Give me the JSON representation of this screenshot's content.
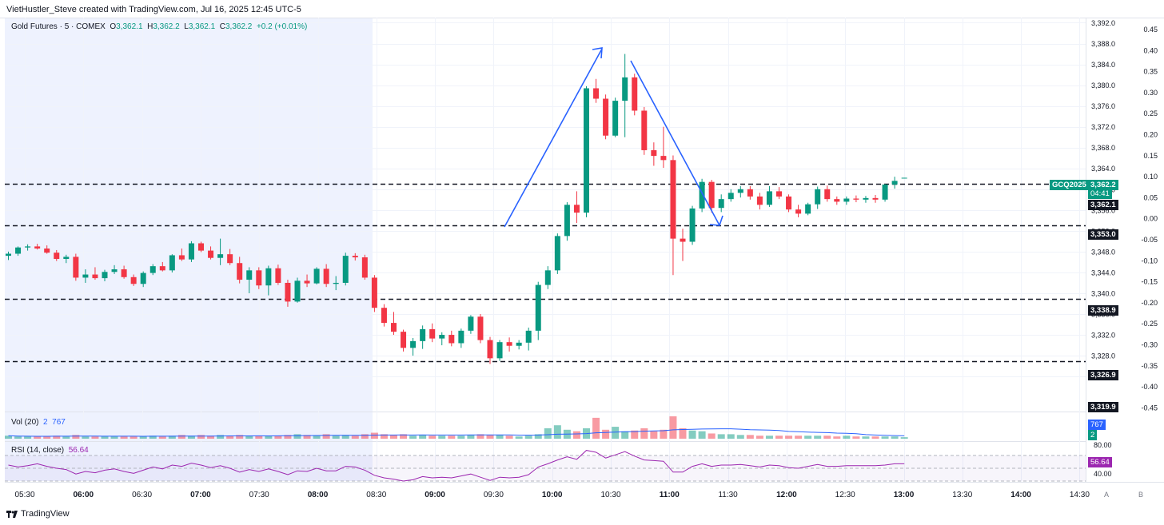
{
  "header": {
    "creator_text": "VietHustler_Steve created with TradingView.com, Jul 16, 2025 12:45 UTC-5"
  },
  "legend": {
    "symbol": "Gold Futures · 5 · COMEX",
    "o_label": "O",
    "o_value": "3,362.1",
    "h_label": "H",
    "h_value": "3,362.2",
    "l_label": "L",
    "l_value": "3,362.1",
    "c_label": "C",
    "c_value": "3,362.2",
    "change": "+0.2 (+0.01%)"
  },
  "volume_legend": {
    "label": "Vol (20)",
    "value1": "2",
    "value2": "767"
  },
  "rsi_legend": {
    "label": "RSI (14, close)",
    "value": "56.64"
  },
  "tags": {
    "symbol": "GCQ2025",
    "last_price": "3,362.2",
    "countdown": "04:41",
    "open_price": "3,362.1",
    "level_1": "3,353.0",
    "level_2": "3,338.9",
    "level_3": "3,326.9",
    "level_4": "3,319.9",
    "vol_big": "767",
    "vol_small": "2",
    "rsi_value": "56.64"
  },
  "footer": {
    "brand": "TradingView",
    "btn_a": "A",
    "btn_b": "B"
  },
  "colors": {
    "up": "#089981",
    "down": "#f23645",
    "rsi": "#9c27b0",
    "annotation": "#2962ff",
    "session_shade": "#eef2fe"
  },
  "chart_data": {
    "type": "candlestick",
    "symbol": "Gold Futures · 5 · COMEX",
    "y_axis_price": {
      "range": [
        3320,
        3394
      ],
      "ticks": [
        3392,
        3388,
        3384,
        3380,
        3376,
        3372,
        3368,
        3364,
        3360,
        3356,
        3352,
        3348,
        3344,
        3340,
        3336,
        3332,
        3328,
        3324
      ]
    },
    "y_axis_percent": {
      "ticks": [
        "0.45",
        "0.40",
        "0.35",
        "0.30",
        "0.25",
        "0.20",
        "0.15",
        "0.10",
        "0.05",
        "0.00",
        "-0.05",
        "-0.10",
        "-0.15",
        "-0.20",
        "-0.25",
        "-0.30",
        "-0.35",
        "-0.40",
        "-0.45"
      ]
    },
    "x_ticks": [
      "05:30",
      "06:00",
      "06:30",
      "07:00",
      "07:30",
      "08:00",
      "08:30",
      "09:00",
      "09:30",
      "10:00",
      "10:30",
      "11:00",
      "11:30",
      "12:00",
      "12:30",
      "13:00",
      "13:30",
      "14:00",
      "14:30"
    ],
    "horizontal_levels": [
      3361,
      3353.0,
      3338.9,
      3326.9
    ],
    "rsi_levels": {
      "upper": 70,
      "middle": 50,
      "lower": 30,
      "labeled_ticks": [
        "80.00",
        "40.00"
      ],
      "last": 56.64
    },
    "candles": [
      [
        3347.2,
        3348.0,
        3346.4,
        3347.6
      ],
      [
        3347.6,
        3349.0,
        3347.2,
        3348.8
      ],
      [
        3348.8,
        3349.4,
        3348.2,
        3349.0
      ],
      [
        3349.0,
        3349.5,
        3348.4,
        3348.6
      ],
      [
        3348.6,
        3349.2,
        3347.6,
        3347.8
      ],
      [
        3347.8,
        3348.3,
        3346.2,
        3346.6
      ],
      [
        3346.6,
        3347.4,
        3345.8,
        3347.0
      ],
      [
        3347.0,
        3347.6,
        3342.4,
        3343.0
      ],
      [
        3343.0,
        3344.6,
        3342.0,
        3343.6
      ],
      [
        3343.6,
        3345.0,
        3342.6,
        3342.9
      ],
      [
        3342.9,
        3344.5,
        3342.3,
        3344.1
      ],
      [
        3344.1,
        3345.4,
        3343.7,
        3344.6
      ],
      [
        3344.6,
        3345.3,
        3342.8,
        3343.1
      ],
      [
        3343.1,
        3343.6,
        3341.4,
        3341.8
      ],
      [
        3341.8,
        3344.2,
        3341.2,
        3343.9
      ],
      [
        3343.9,
        3345.6,
        3343.5,
        3345.2
      ],
      [
        3345.2,
        3346.0,
        3344.2,
        3344.4
      ],
      [
        3344.4,
        3347.5,
        3344.0,
        3347.3
      ],
      [
        3347.3,
        3348.6,
        3346.2,
        3346.5
      ],
      [
        3346.5,
        3350.0,
        3346.0,
        3349.6
      ],
      [
        3349.6,
        3349.9,
        3347.9,
        3348.2
      ],
      [
        3348.2,
        3349.0,
        3346.5,
        3346.8
      ],
      [
        3346.8,
        3350.5,
        3345.4,
        3347.5
      ],
      [
        3347.5,
        3348.5,
        3345.4,
        3345.8
      ],
      [
        3345.8,
        3347.0,
        3341.9,
        3342.6
      ],
      [
        3342.6,
        3345.0,
        3340.0,
        3344.4
      ],
      [
        3344.4,
        3345.0,
        3340.8,
        3341.5
      ],
      [
        3341.5,
        3345.3,
        3339.6,
        3344.8
      ],
      [
        3344.8,
        3345.5,
        3341.6,
        3342.0
      ],
      [
        3342.0,
        3342.6,
        3337.4,
        3338.4
      ],
      [
        3338.4,
        3343.0,
        3338.2,
        3342.4
      ],
      [
        3342.4,
        3343.6,
        3341.2,
        3341.9
      ],
      [
        3341.9,
        3345.0,
        3341.7,
        3344.7
      ],
      [
        3344.7,
        3345.6,
        3341.2,
        3341.8
      ],
      [
        3341.8,
        3343.3,
        3340.6,
        3342.0
      ],
      [
        3342.0,
        3347.8,
        3341.5,
        3347.2
      ],
      [
        3347.2,
        3347.7,
        3346.3,
        3346.9
      ],
      [
        3346.9,
        3347.4,
        3342.6,
        3343.0
      ],
      [
        3343.0,
        3343.5,
        3336.4,
        3337.2
      ],
      [
        3337.2,
        3337.9,
        3333.6,
        3334.3
      ],
      [
        3334.3,
        3336.4,
        3332.0,
        3332.6
      ],
      [
        3332.6,
        3333.0,
        3328.8,
        3329.5
      ],
      [
        3329.5,
        3331.4,
        3328.0,
        3330.8
      ],
      [
        3330.8,
        3333.8,
        3329.3,
        3333.1
      ],
      [
        3333.1,
        3334.2,
        3330.6,
        3331.3
      ],
      [
        3331.3,
        3332.5,
        3330.0,
        3332.0
      ],
      [
        3332.0,
        3332.8,
        3329.8,
        3330.4
      ],
      [
        3330.4,
        3333.2,
        3329.5,
        3332.8
      ],
      [
        3332.8,
        3335.8,
        3332.2,
        3335.5
      ],
      [
        3335.5,
        3336.0,
        3330.4,
        3331.0
      ],
      [
        3331.0,
        3331.6,
        3326.4,
        3327.5
      ],
      [
        3327.5,
        3331.0,
        3327.0,
        3330.6
      ],
      [
        3330.6,
        3331.5,
        3328.8,
        3329.9
      ],
      [
        3329.9,
        3331.0,
        3329.2,
        3330.5
      ],
      [
        3330.5,
        3333.4,
        3329.0,
        3332.8
      ],
      [
        3332.8,
        3342.2,
        3331.0,
        3341.6
      ],
      [
        3341.6,
        3345.2,
        3340.8,
        3344.4
      ],
      [
        3344.4,
        3351.5,
        3343.7,
        3351.0
      ],
      [
        3351.0,
        3357.5,
        3350.1,
        3357.0
      ],
      [
        3357.0,
        3359.6,
        3353.5,
        3355.5
      ],
      [
        3355.5,
        3379.8,
        3354.6,
        3379.4
      ],
      [
        3379.4,
        3381.2,
        3376.6,
        3377.4
      ],
      [
        3377.4,
        3378.2,
        3369.6,
        3370.3
      ],
      [
        3370.3,
        3377.6,
        3370.0,
        3377.0
      ],
      [
        3377.0,
        3386.0,
        3370.0,
        3381.5
      ],
      [
        3381.5,
        3382.2,
        3374.2,
        3375.1
      ],
      [
        3375.1,
        3375.8,
        3366.6,
        3367.5
      ],
      [
        3367.5,
        3369.0,
        3364.5,
        3366.4
      ],
      [
        3366.4,
        3372.0,
        3364.1,
        3365.6
      ],
      [
        3365.6,
        3366.5,
        3343.5,
        3350.5
      ],
      [
        3350.5,
        3352.4,
        3346.2,
        3349.9
      ],
      [
        3349.9,
        3356.8,
        3349.3,
        3356.3
      ],
      [
        3356.3,
        3362.0,
        3355.6,
        3361.4
      ],
      [
        3361.4,
        3361.8,
        3355.5,
        3356.4
      ],
      [
        3356.4,
        3359.0,
        3355.6,
        3358.1
      ],
      [
        3358.1,
        3360.0,
        3357.6,
        3359.3
      ],
      [
        3359.3,
        3360.6,
        3358.4,
        3360.0
      ],
      [
        3360.0,
        3360.6,
        3358.0,
        3358.6
      ],
      [
        3358.6,
        3359.3,
        3356.1,
        3357.0
      ],
      [
        3357.0,
        3360.6,
        3356.6,
        3359.6
      ],
      [
        3359.6,
        3360.4,
        3358.1,
        3358.6
      ],
      [
        3358.6,
        3359.0,
        3355.6,
        3356.1
      ],
      [
        3356.1,
        3357.0,
        3354.6,
        3355.3
      ],
      [
        3355.3,
        3357.4,
        3355.0,
        3357.1
      ],
      [
        3357.1,
        3360.5,
        3356.2,
        3360.0
      ],
      [
        3360.0,
        3360.7,
        3357.6,
        3358.1
      ],
      [
        3358.1,
        3358.6,
        3357.0,
        3357.6
      ],
      [
        3357.6,
        3358.6,
        3357.0,
        3358.2
      ],
      [
        3358.2,
        3358.8,
        3357.5,
        3358.0
      ],
      [
        3358.0,
        3358.7,
        3357.4,
        3358.3
      ],
      [
        3358.3,
        3358.9,
        3357.4,
        3358.0
      ],
      [
        3358.0,
        3361.0,
        3357.6,
        3360.9
      ],
      [
        3360.9,
        3362.4,
        3360.1,
        3361.6
      ],
      [
        3362.1,
        3362.2,
        3362.1,
        3362.2
      ]
    ],
    "volume": [
      4,
      3,
      3,
      3,
      3,
      4,
      3,
      5,
      3,
      3,
      3,
      3,
      3,
      3,
      3,
      4,
      3,
      4,
      5,
      4,
      5,
      4,
      5,
      4,
      5,
      4,
      4,
      4,
      4,
      5,
      6,
      5,
      4,
      6,
      4,
      5,
      4,
      6,
      8,
      6,
      5,
      6,
      4,
      5,
      4,
      4,
      4,
      4,
      5,
      6,
      5,
      5,
      4,
      3,
      4,
      6,
      14,
      18,
      12,
      10,
      14,
      28,
      12,
      16,
      10,
      11,
      14,
      10,
      12,
      30,
      14,
      11,
      10,
      7,
      6,
      6,
      5,
      5,
      4,
      4,
      4,
      4,
      4,
      4,
      4,
      4,
      3,
      4,
      3,
      3,
      3,
      3,
      3,
      2
    ],
    "rsi": [
      55,
      52,
      54,
      57,
      53,
      50,
      48,
      41,
      45,
      43,
      47,
      49,
      45,
      42,
      47,
      52,
      49,
      55,
      53,
      58,
      55,
      51,
      54,
      50,
      44,
      48,
      45,
      49,
      45,
      40,
      46,
      45,
      50,
      46,
      46,
      53,
      52,
      47,
      39,
      35,
      33,
      30,
      32,
      37,
      35,
      36,
      35,
      38,
      41,
      36,
      31,
      36,
      35,
      36,
      40,
      52,
      57,
      63,
      68,
      64,
      78,
      75,
      66,
      71,
      76,
      69,
      63,
      62,
      61,
      44,
      44,
      53,
      57,
      53,
      55,
      55,
      56,
      54,
      52,
      55,
      54,
      51,
      50,
      53,
      56,
      53,
      53,
      54,
      54,
      54,
      54,
      55,
      57,
      57
    ]
  }
}
